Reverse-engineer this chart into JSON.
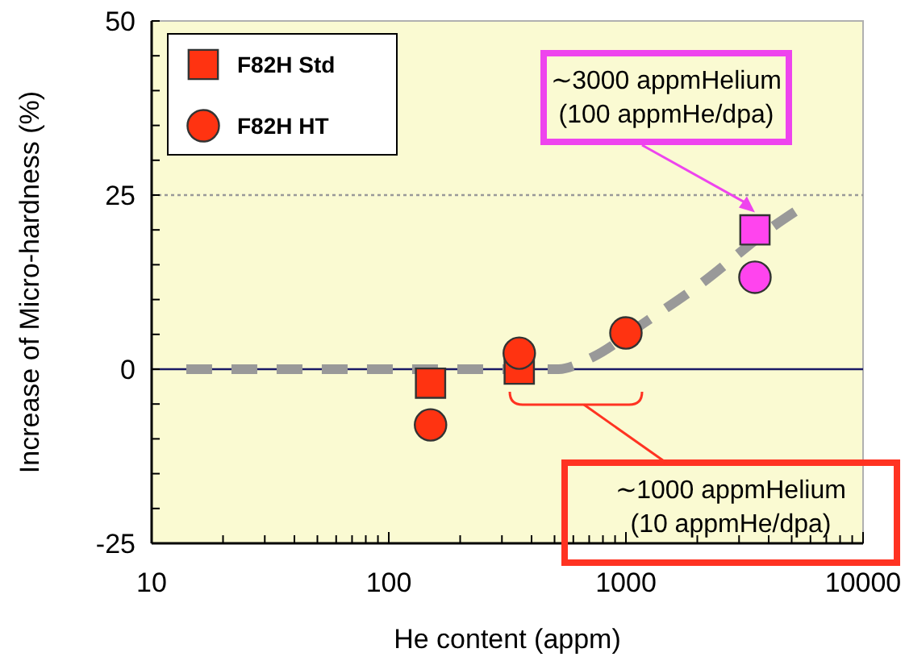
{
  "chart_data": {
    "type": "scatter",
    "xlabel": "He content (appm)",
    "ylabel": "Increase of Micro-hardness (%)",
    "log": "x",
    "xlim": [
      10,
      10000
    ],
    "xticks": [
      10,
      {
        "value": 20,
        "label": null
      },
      {
        "value": 30,
        "label": null
      },
      {
        "value": 40,
        "label": null
      },
      {
        "value": 50,
        "label": null
      },
      {
        "value": 60,
        "label": null
      },
      {
        "value": 70,
        "label": null
      },
      {
        "value": 80,
        "label": null
      },
      {
        "value": 90,
        "label": null
      },
      100,
      {
        "value": 200,
        "label": null
      },
      {
        "value": 300,
        "label": null
      },
      {
        "value": 400,
        "label": null
      },
      {
        "value": 500,
        "label": null
      },
      {
        "value": 600,
        "label": null
      },
      {
        "value": 700,
        "label": null
      },
      {
        "value": 800,
        "label": null
      },
      {
        "value": 900,
        "label": null
      },
      1000,
      {
        "value": 2000,
        "label": null
      },
      {
        "value": 3000,
        "label": null
      },
      {
        "value": 4000,
        "label": null
      },
      {
        "value": 5000,
        "label": null
      },
      {
        "value": 6000,
        "label": null
      },
      {
        "value": 7000,
        "label": null
      },
      {
        "value": 8000,
        "label": null
      },
      {
        "value": 9000,
        "label": null
      },
      10000
    ],
    "ylim": [
      -25,
      50
    ],
    "yticks": [
      -25,
      {
        "value": -20,
        "label": null
      },
      {
        "value": -15,
        "label": null
      },
      {
        "value": -10,
        "label": null
      },
      {
        "value": -5,
        "label": null
      },
      0,
      {
        "value": 5,
        "label": null
      },
      {
        "value": 10,
        "label": null
      },
      {
        "value": 15,
        "label": null
      },
      {
        "value": 20,
        "label": null
      },
      25,
      {
        "value": 30,
        "label": null
      },
      {
        "value": 35,
        "label": null
      },
      {
        "value": 40,
        "label": null
      },
      {
        "value": 45,
        "label": null
      },
      50
    ],
    "grid": false,
    "legend": "top left",
    "ref_lines": [
      {
        "axis": "y",
        "value": 0,
        "color": "#1a1a66",
        "line_style": "solid"
      },
      {
        "axis": "y",
        "value": 25,
        "color": "#999999",
        "line_style": "dotted"
      }
    ],
    "series": [
      {
        "type": "line",
        "color": "#999999",
        "line_style": "dashed",
        "marker": "none",
        "x": [
          14,
          520,
          720,
          1200,
          2040,
          4220,
          5770
        ],
        "values": [
          0,
          0,
          1.7,
          6.7,
          12.1,
          20.6,
          23.7
        ]
      },
      {
        "name": "F82H Std",
        "marker": "square",
        "color": "#ff3311",
        "colors": [
          "#ff3311",
          "#ff3311",
          "#ff44ee"
        ],
        "x": [
          150,
          355,
          3500
        ],
        "values": [
          -2,
          0,
          20
        ]
      },
      {
        "name": "F82H HT",
        "marker": "circle",
        "color": "#ff3311",
        "colors": [
          "#ff3311",
          "#ff3311",
          "#ff3311",
          "#ff44ee"
        ],
        "x": [
          150,
          355,
          1000,
          3500
        ],
        "values": [
          -8,
          2.3,
          5.2,
          13.2
        ]
      }
    ],
    "annotations": [
      {
        "text": "∼3000 appmHelium\n(100 appmHe/dpa)",
        "x": 3500,
        "y": 22.5
      },
      "∼1000 appmHelium\n(10 appmHe/dpa)"
    ]
  }
}
